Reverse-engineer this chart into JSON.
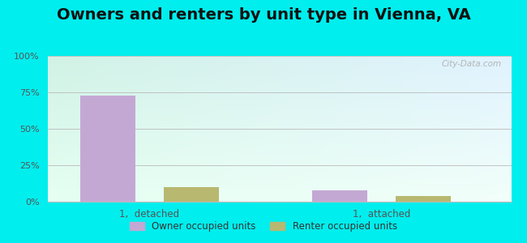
{
  "title": "Owners and renters by unit type in Vienna, VA",
  "categories": [
    "1,  detached",
    "1,  attached"
  ],
  "owner_values": [
    73,
    8
  ],
  "renter_values": [
    10,
    4
  ],
  "owner_color": "#c4a8d4",
  "renter_color": "#b8b870",
  "ylim": [
    0,
    100
  ],
  "yticks": [
    0,
    25,
    50,
    75,
    100
  ],
  "ytick_labels": [
    "0%",
    "25%",
    "50%",
    "75%",
    "100%"
  ],
  "bg_color_topleft": "#cceedd",
  "bg_color_topright": "#ddeeff",
  "bg_color_bottom": "#eefff5",
  "outer_bg": "#00eeee",
  "title_fontsize": 14,
  "legend_labels": [
    "Owner occupied units",
    "Renter occupied units"
  ],
  "watermark": "City-Data.com",
  "bar_width": 0.12,
  "group_centers": [
    0.22,
    0.72
  ],
  "bar_gap": 0.06
}
